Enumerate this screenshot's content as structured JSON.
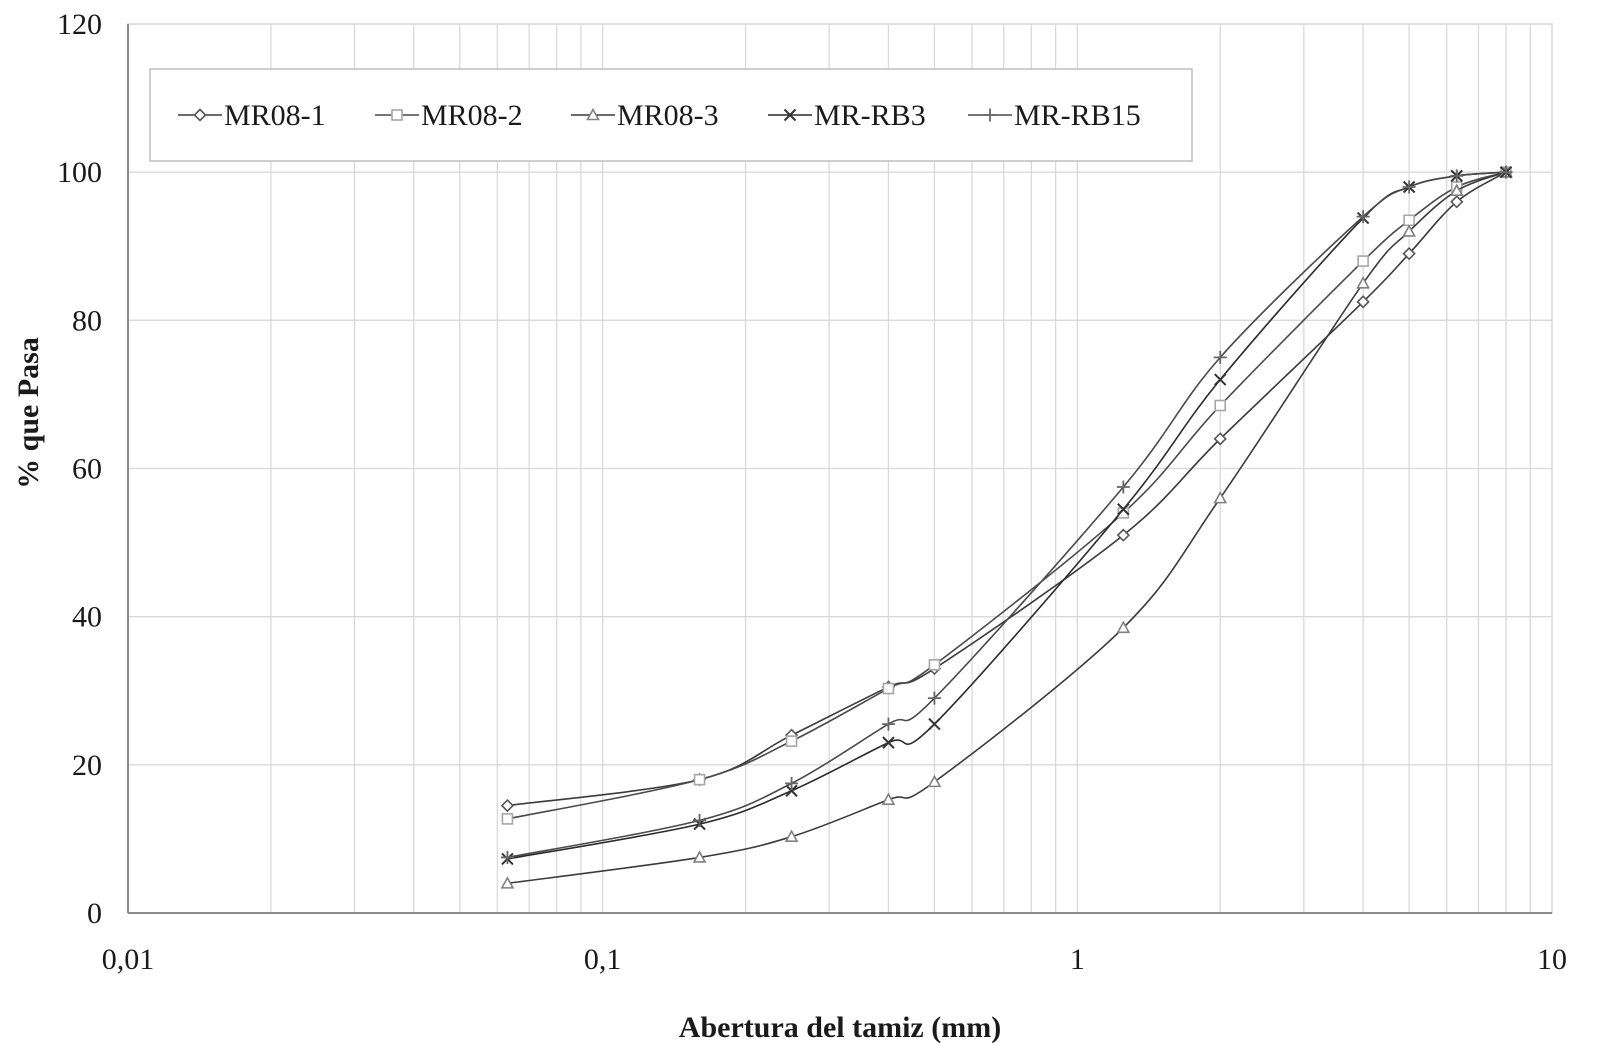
{
  "chart_data": {
    "type": "line",
    "xscale": "log",
    "xlim": [
      0.01,
      10
    ],
    "ylim": [
      0,
      120
    ],
    "xticks": [
      0.01,
      0.1,
      1,
      10
    ],
    "xtick_labels": [
      "0,01",
      "0,1",
      "1",
      "10"
    ],
    "yticks": [
      0,
      20,
      40,
      60,
      80,
      100,
      120
    ],
    "ytick_labels": [
      "0",
      "20",
      "40",
      "60",
      "80",
      "100",
      "120"
    ],
    "xlabel": "Abertura del tamiz (mm)",
    "ylabel": "% que Pasa",
    "grid": true,
    "legend_position": "top-left",
    "x": [
      0.063,
      0.16,
      0.25,
      0.4,
      0.5,
      1.25,
      2,
      4,
      5,
      6.3,
      8
    ],
    "series": [
      {
        "name": "MR08-1",
        "marker": "diamond",
        "values": [
          14.5,
          18,
          24,
          30.5,
          33,
          51,
          64,
          82.5,
          89,
          96,
          100
        ]
      },
      {
        "name": "MR08-2",
        "marker": "square",
        "values": [
          12.7,
          18,
          23.2,
          30.3,
          33.5,
          54,
          68.5,
          88,
          93.5,
          98,
          100
        ]
      },
      {
        "name": "MR08-3",
        "marker": "triangle",
        "values": [
          4,
          7.5,
          10.3,
          15.3,
          17.7,
          38.5,
          56,
          85,
          92,
          97.5,
          100
        ]
      },
      {
        "name": "MR-RB3",
        "marker": "x",
        "values": [
          7.3,
          12,
          16.5,
          23,
          25.5,
          54.5,
          72,
          93.8,
          98,
          99.5,
          100
        ]
      },
      {
        "name": "MR-RB15",
        "marker": "plus",
        "values": [
          7.5,
          12.5,
          17.5,
          25.5,
          29,
          57.5,
          75,
          94,
          98,
          99.5,
          100
        ]
      }
    ]
  }
}
